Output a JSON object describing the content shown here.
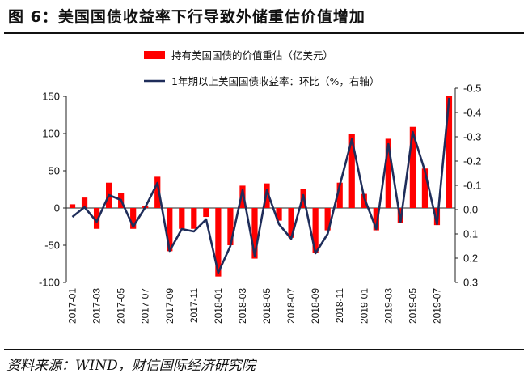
{
  "header": {
    "title": "图 6：美国国债收益率下行导致外储重估价值增加"
  },
  "footer": {
    "source": "资料来源：WIND，财信国际经济研究院"
  },
  "colors": {
    "bar": "#ff0000",
    "line": "#1f2d5a",
    "right_axis": "#ff0000",
    "text": "#111111"
  },
  "chart_data": {
    "type": "bar",
    "legend_position": "top",
    "grid": false,
    "x": [
      "2017-01",
      "2017-02",
      "2017-03",
      "2017-04",
      "2017-05",
      "2017-06",
      "2017-07",
      "2017-08",
      "2017-09",
      "2017-10",
      "2017-11",
      "2017-12",
      "2018-01",
      "2018-02",
      "2018-03",
      "2018-04",
      "2018-05",
      "2018-06",
      "2018-07",
      "2018-08",
      "2018-09",
      "2018-10",
      "2018-11",
      "2018-12",
      "2019-01",
      "2019-02",
      "2019-03",
      "2019-04",
      "2019-05",
      "2019-06",
      "2019-07",
      "2019-08"
    ],
    "x_tick_labels": [
      "2017-01",
      "2017-03",
      "2017-05",
      "2017-07",
      "2017-09",
      "2017-11",
      "2018-01",
      "2018-03",
      "2018-05",
      "2018-07",
      "2018-09",
      "2018-11",
      "2019-01",
      "2019-03",
      "2019-05",
      "2019-07"
    ],
    "left_axis": {
      "ylim": [
        -100,
        150
      ],
      "ticks": [
        150,
        100,
        50,
        0,
        -50,
        -100
      ]
    },
    "right_axis": {
      "ylim": [
        0.3,
        -0.5
      ],
      "reversed": true,
      "ticks": [
        -0.5,
        -0.4,
        -0.3,
        -0.2,
        -0.1,
        0.0,
        0.1,
        0.2,
        0.3
      ],
      "tick_labels": [
        "-0.5",
        "-0.4",
        "-0.3",
        "-0.2",
        "-0.1",
        "0.0",
        "0.1",
        "0.2",
        "0.3"
      ]
    },
    "series": [
      {
        "name": "持有美国国债的价值重估（亿美元）",
        "type": "bar",
        "axis": "left",
        "values": [
          5,
          14,
          -28,
          34,
          20,
          -28,
          3,
          42,
          -58,
          -28,
          -28,
          -12,
          -92,
          -50,
          30,
          -68,
          33,
          -17,
          -40,
          25,
          -60,
          -30,
          34,
          99,
          19,
          -30,
          93,
          -20,
          109,
          53,
          -23,
          150
        ]
      },
      {
        "name": "1年期以上美国国债收益率：环比（%，右轴）",
        "type": "line",
        "axis": "right",
        "values": [
          0.03,
          -0.01,
          0.05,
          -0.06,
          -0.04,
          0.07,
          -0.01,
          -0.11,
          0.17,
          0.08,
          0.09,
          0.04,
          0.26,
          0.15,
          -0.08,
          0.19,
          -0.08,
          0.06,
          0.12,
          -0.06,
          0.18,
          0.1,
          -0.1,
          -0.29,
          -0.05,
          0.08,
          -0.27,
          0.05,
          -0.32,
          -0.16,
          0.06,
          -0.46
        ]
      }
    ]
  }
}
